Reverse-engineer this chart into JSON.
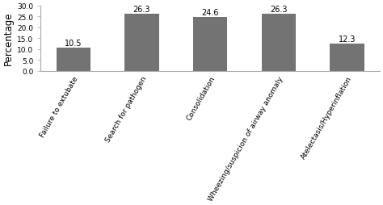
{
  "categories": [
    "Failure to extubate",
    "Search for pathogen",
    "Consolidation",
    "Wheezing/suspicion of airway anomaly",
    "Atelectasis/Hyperinflation"
  ],
  "values": [
    10.5,
    26.3,
    24.6,
    26.3,
    12.3
  ],
  "bar_color": "#737373",
  "ylabel": "Percentage",
  "ylim": [
    0,
    30.0
  ],
  "yticks": [
    0.0,
    5.0,
    10.0,
    15.0,
    20.0,
    25.0,
    30.0
  ],
  "bar_label_fontsize": 7.0,
  "ylabel_fontsize": 8.5,
  "tick_label_fontsize": 6.5,
  "xtick_label_fontsize": 6.5,
  "background_color": "#ffffff",
  "bar_width": 0.5,
  "xlabel_rotation": 60
}
